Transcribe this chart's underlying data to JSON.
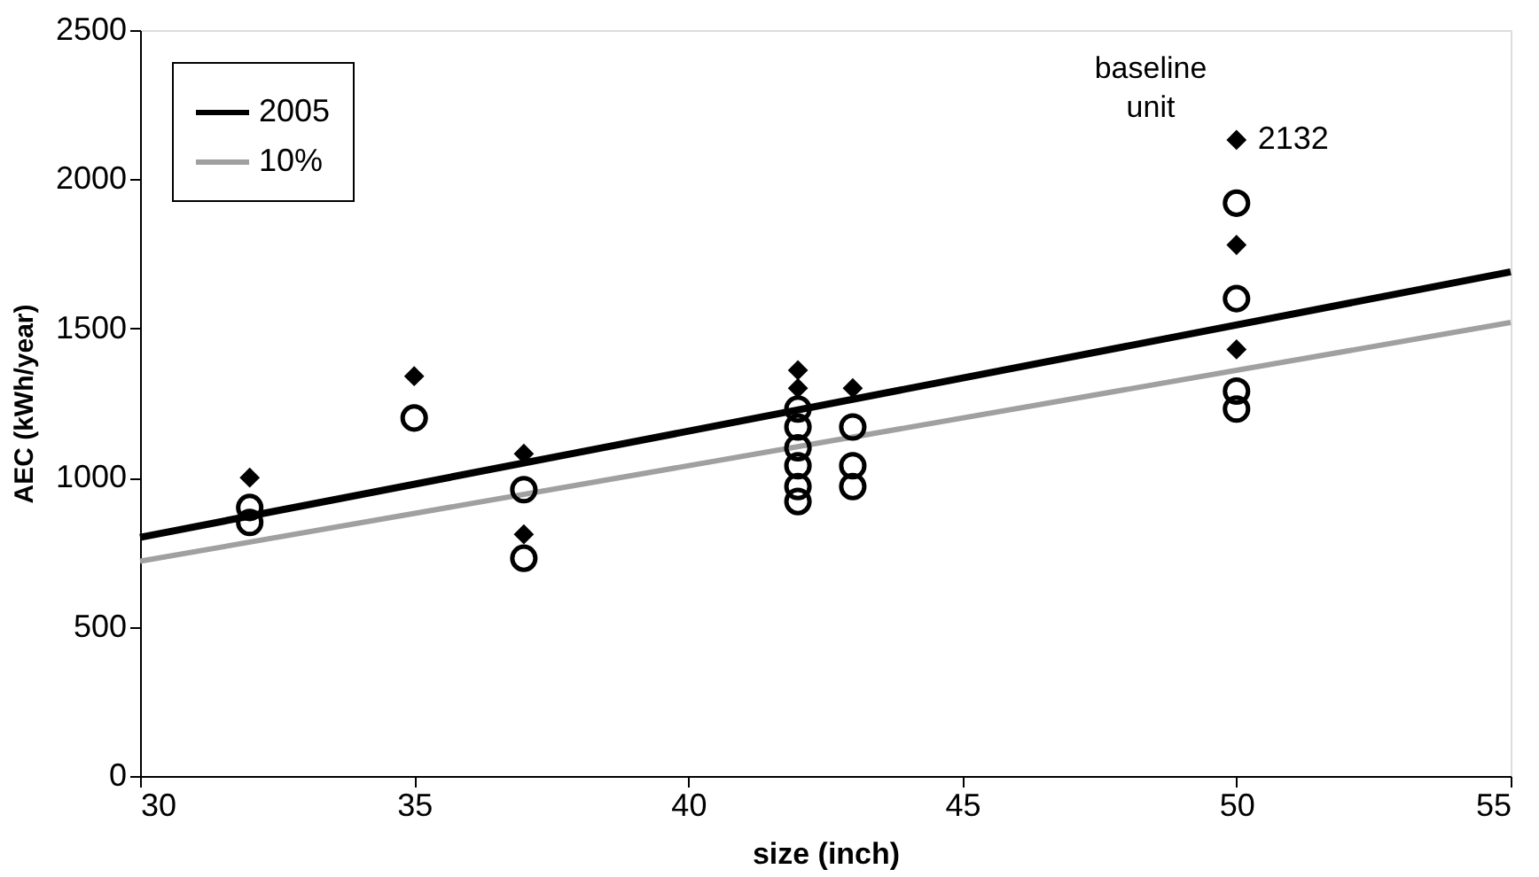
{
  "chart_data": {
    "type": "scatter",
    "xlabel": "size (inch)",
    "ylabel": "AEC (kWh/year)",
    "xlim": [
      30,
      55
    ],
    "xticks": [
      30,
      35,
      40,
      45,
      50,
      55
    ],
    "ylim": [
      0,
      2500
    ],
    "yticks": [
      0,
      500,
      1000,
      1500,
      2000,
      2500
    ],
    "grid": false,
    "legend": "top left",
    "series": [
      {
        "name": "2005",
        "type": "line",
        "line_style": "solid",
        "color": "#000000",
        "x": [
          30,
          55
        ],
        "values": [
          800,
          1690
        ]
      },
      {
        "name": "10%",
        "type": "line",
        "line_style": "solid",
        "color": "#a0a0a0",
        "x": [
          30,
          55
        ],
        "values": [
          720,
          1520
        ]
      },
      {
        "marker": "diamond",
        "color": "#000000",
        "x": [
          32,
          35,
          37,
          37,
          42,
          42,
          43,
          50,
          50,
          50
        ],
        "values": [
          1000,
          1340,
          1080,
          810,
          1360,
          1300,
          1300,
          2132,
          1780,
          1430
        ]
      },
      {
        "type": "scatter",
        "marker": "circle",
        "color": "#000000",
        "x": [
          32,
          32,
          35,
          37,
          37,
          42,
          42,
          42,
          42,
          42,
          42,
          43,
          43,
          43,
          50,
          50,
          50,
          50
        ],
        "values": [
          900,
          850,
          1200,
          960,
          730,
          1230,
          1170,
          1100,
          1040,
          970,
          920,
          1170,
          1040,
          970,
          1920,
          1600,
          1290,
          1230
        ]
      }
    ],
    "annotations": [
      {
        "text": "2132",
        "x": 50,
        "y": 2132
      },
      "baseline unit"
    ]
  }
}
